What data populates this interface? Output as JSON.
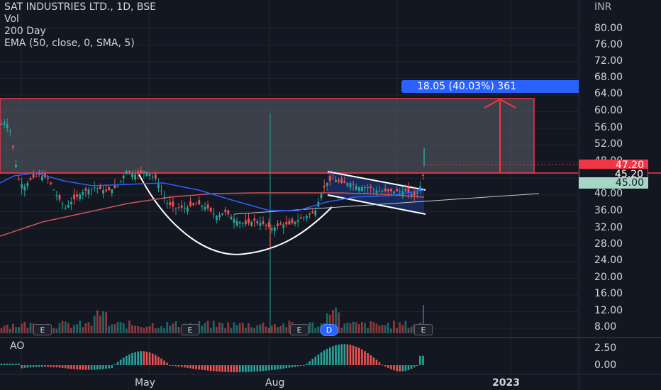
{
  "legend": {
    "symbol": "SAT INDUSTRIES LTD., 1D, BSE",
    "vol": "Vol",
    "ma": "200 Day",
    "ema": "EMA (50, close, 0, SMA, 5)"
  },
  "oscillator": {
    "label": "AO"
  },
  "price_axis": {
    "currency": "INR",
    "labels": [
      "80.00",
      "76.00",
      "72.00",
      "68.00",
      "64.00",
      "60.00",
      "56.00",
      "52.00",
      "48.00",
      "40.00",
      "36.00",
      "32.00",
      "28.00",
      "24.00",
      "20.00",
      "16.00",
      "12.00",
      "8.00"
    ],
    "ao_labels": [
      "2.50",
      "0.00"
    ]
  },
  "price_tags": {
    "last": "47.20",
    "level_1": "45.20",
    "level_2": "45.00"
  },
  "measure": {
    "text": "18.05 (40.03%) 361"
  },
  "time_axis": {
    "may": "May",
    "aug": "Aug",
    "year": "2023"
  },
  "events": {
    "earnings": "E",
    "dividend": "D"
  },
  "colors": {
    "background": "#131722",
    "up": "#26a69a",
    "down": "#ef5350",
    "ema": "#2962ff",
    "ma200": "#d05454",
    "zone": "#5d606b",
    "tag_red": "#f23645",
    "tag_green": "#a5d6c6"
  }
}
